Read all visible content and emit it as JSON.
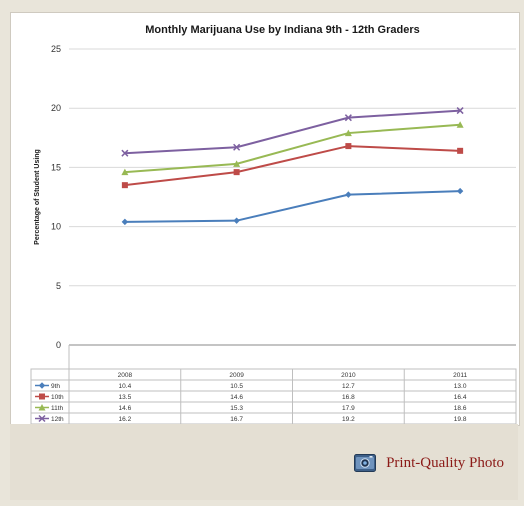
{
  "chart_data": {
    "type": "line",
    "title": "Monthly Marijuana Use by Indiana 9th - 12th Graders",
    "ylabel": "Percentage of Student Using",
    "xlabel": "",
    "categories": [
      "2008",
      "2009",
      "2010",
      "2011"
    ],
    "ylim": [
      0,
      25
    ],
    "yticks": [
      0,
      5,
      10,
      15,
      20,
      25
    ],
    "grid": true,
    "legend": "data-table-bottom",
    "series": [
      {
        "name": "9th",
        "values": [
          10.4,
          10.5,
          12.7,
          13.0
        ],
        "color": "#4a7ebb",
        "marker": "diamond"
      },
      {
        "name": "10th",
        "values": [
          13.5,
          14.6,
          16.8,
          16.4
        ],
        "color": "#be4b48",
        "marker": "square"
      },
      {
        "name": "11th",
        "values": [
          14.6,
          15.3,
          17.9,
          18.6
        ],
        "color": "#98b954",
        "marker": "triangle"
      },
      {
        "name": "12th",
        "values": [
          16.2,
          16.7,
          19.2,
          19.8
        ],
        "color": "#7d60a0",
        "marker": "x"
      }
    ],
    "table_values": [
      [
        "10.4",
        "10.5",
        "12.7",
        "13.0"
      ],
      [
        "13.5",
        "14.6",
        "16.8",
        "16.4"
      ],
      [
        "14.6",
        "15.3",
        "17.9",
        "18.6"
      ],
      [
        "16.2",
        "16.7",
        "19.2",
        "19.8"
      ]
    ]
  },
  "footer": {
    "link_label": "Print-Quality Photo",
    "link_icon": "camera-icon",
    "link_color": "#8b1a17"
  }
}
